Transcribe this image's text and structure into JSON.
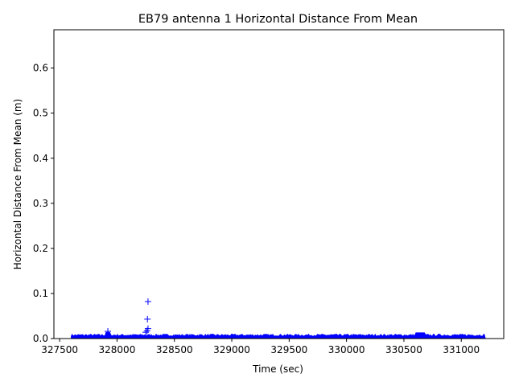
{
  "chart_data": {
    "type": "scatter",
    "title": "EB79 antenna 1 Horizontal Distance From Mean",
    "xlabel": "Time (sec)",
    "ylabel": "Horizontal Distance From Mean (m)",
    "xlim": [
      327450,
      331370
    ],
    "ylim": [
      0,
      0.685
    ],
    "xticks": [
      327500,
      328000,
      328500,
      329000,
      329500,
      330000,
      330500,
      331000
    ],
    "yticks": [
      0.0,
      0.1,
      0.2,
      0.3,
      0.4,
      0.5,
      0.6
    ],
    "ytick_labels": [
      "0.0",
      "0.1",
      "0.2",
      "0.3",
      "0.4",
      "0.5",
      "0.6"
    ],
    "marker": "+",
    "color": "#0000ff",
    "grid": false,
    "series": [
      {
        "x_range": [
          327600,
          331210
        ],
        "typical_max": 0.01,
        "dense_band": true,
        "outliers": [
          {
            "x": 328270,
            "y": 0.082
          },
          {
            "x": 328265,
            "y": 0.043
          },
          {
            "x": 328270,
            "y": 0.022
          },
          {
            "x": 328262,
            "y": 0.017
          },
          {
            "x": 328250,
            "y": 0.014
          },
          {
            "x": 327920,
            "y": 0.016
          }
        ]
      }
    ]
  }
}
